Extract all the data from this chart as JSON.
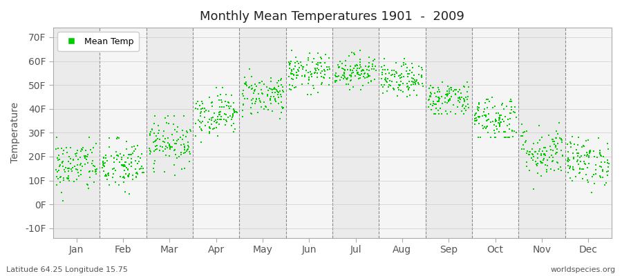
{
  "title": "Monthly Mean Temperatures 1901  -  2009",
  "ylabel": "Temperature",
  "xlabel_bottom_left": "Latitude 64.25 Longitude 15.75",
  "xlabel_bottom_right": "worldspecies.org",
  "legend_label": "Mean Temp",
  "dot_color": "#00cc00",
  "bg_color": "#ffffff",
  "plot_bg_color_light": "#f0f0f0",
  "plot_bg_color_dark": "#e0e0e0",
  "months": [
    "Jan",
    "Feb",
    "Mar",
    "Apr",
    "May",
    "Jun",
    "Jul",
    "Aug",
    "Sep",
    "Oct",
    "Nov",
    "Dec"
  ],
  "yticks": [
    -10,
    0,
    10,
    20,
    30,
    40,
    50,
    60,
    70
  ],
  "ytick_labels": [
    "-10F",
    "0F",
    "10F",
    "20F",
    "30F",
    "40F",
    "50F",
    "60F",
    "70F"
  ],
  "ylim": [
    -14,
    74
  ],
  "seed": 42,
  "monthly_mean": [
    16,
    16,
    26,
    38,
    46,
    55,
    56,
    52,
    44,
    36,
    22,
    18
  ],
  "monthly_std": [
    5.5,
    5.5,
    5.0,
    4.5,
    4.5,
    4.0,
    3.5,
    3.5,
    4.0,
    5.0,
    5.5,
    5.0
  ],
  "monthly_min": [
    -7,
    -5,
    10,
    26,
    36,
    46,
    48,
    44,
    38,
    28,
    6,
    1
  ],
  "monthly_max": [
    28,
    31,
    37,
    49,
    57,
    65,
    65,
    61,
    53,
    50,
    38,
    30
  ],
  "n_years": 109,
  "band_colors": [
    "#ebebeb",
    "#f5f5f5",
    "#ebebeb",
    "#f5f5f5",
    "#ebebeb",
    "#f5f5f5",
    "#ebebeb",
    "#f5f5f5",
    "#ebebeb",
    "#f5f5f5",
    "#ebebeb",
    "#f5f5f5"
  ]
}
